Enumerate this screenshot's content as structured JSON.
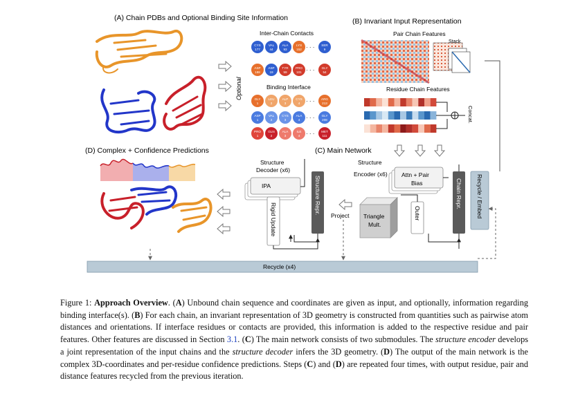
{
  "panels": {
    "a_title": "(A) Chain PDBs and Optional Binding Site Information",
    "b_title": "(B) Invariant Input Representation",
    "c_title": "(C) Main Network",
    "d_title": "(D) Complex + Confidence Predictions"
  },
  "panel_a": {
    "contacts_title": "Inter-Chain Contacts",
    "interface_title": "Binding Interface",
    "optional_label": "Optional",
    "contacts_row1": [
      {
        "name": "CYS",
        "num": "177"
      },
      {
        "name": "VAL",
        "num": "44"
      },
      {
        "name": "ALA",
        "num": "93"
      },
      {
        "name": "LYS",
        "num": "152"
      },
      {
        "name": "SER",
        "num": "9"
      }
    ],
    "contacts_row2": [
      {
        "name": "ASP",
        "num": "188"
      },
      {
        "name": "ASP",
        "num": "19"
      },
      {
        "name": "TYR",
        "num": "59"
      },
      {
        "name": "PRO",
        "num": "101"
      },
      {
        "name": "GLY",
        "num": "54"
      }
    ],
    "interface_row1": [
      {
        "name": "GLY",
        "num": "1"
      },
      {
        "name": "LEU",
        "num": "2"
      },
      {
        "name": "ALP",
        "num": "3"
      },
      {
        "name": "CYS",
        "num": "4"
      },
      {
        "name": "ARG",
        "num": "213"
      }
    ],
    "interface_row2": [
      {
        "name": "ASP",
        "num": "1"
      },
      {
        "name": "VAL",
        "num": "2"
      },
      {
        "name": "CYS",
        "num": "3"
      },
      {
        "name": "ALA",
        "num": "4"
      },
      {
        "name": "GLY",
        "num": "208"
      }
    ],
    "interface_row3": [
      {
        "name": "PRO",
        "num": "1"
      },
      {
        "name": "GLN",
        "num": "2"
      },
      {
        "name": "ALA",
        "num": "3"
      },
      {
        "name": "ILE",
        "num": "4"
      },
      {
        "name": "MET",
        "num": "111"
      }
    ],
    "ellipsis": "· · ·"
  },
  "panel_b": {
    "pair_features": "Pair Chain Features",
    "stack": "Stack",
    "residue_features": "Residue Chain Features",
    "concat": "Concat."
  },
  "panel_c": {
    "structure_decoder": "Structure",
    "decoder_x6": "Decoder (x6)",
    "structure_encoder": "Structure",
    "encoder_x6": "Encoder (x6)",
    "ipa": "IPA",
    "structure_repr": "Structure Repr.",
    "rigid_update": "Rigid Update",
    "project": "Project",
    "attn_pair": "Attn + Pair",
    "bias": "Bias",
    "outer": "Outer",
    "triangle": "Triangle",
    "mult": "Mult.",
    "chain_repr": "Chain Repr.",
    "recycle_embed": "Recycle / Embed",
    "recycle_bar": "Recycle (x4)"
  },
  "caption": {
    "figure_label": "Figure 1:",
    "bold_title": "Approach Overview",
    "s1": ". (",
    "A": "A",
    "s2": ") Unbound chain sequence and coordinates are given as input, and optionally, information regarding binding interface(s). (",
    "B": "B",
    "s3": ") For each chain, an invariant representation of 3D geometry is constructed from quantities such as pairwise atom distances and orientations. If interface residues or contacts are provided, this information is added to the respective residue and pair features. Other features are discussed in Section ",
    "ref": "3.1",
    "s4": ". (",
    "C": "C",
    "s5": ") The main network consists of two submodules. The ",
    "enc": "structure encoder",
    "s6": " develops a joint representation of the input chains and the ",
    "dec": "structure decoder",
    "s7": " infers the 3D geometry. (",
    "D": "D",
    "s8": ") The output of the main network is the complex 3D-coordinates and per-residue confidence predictions. Steps (",
    "C2": "C",
    "s9": ") and (",
    "D2": "D",
    "s10": ") are repeated four times, with output residue, pair and distance features recycled from the previous iteration."
  },
  "colors": {
    "orange": "#e8952a",
    "blue": "#2236c9",
    "red": "#c8202a",
    "box_gray": "#d9d9d9",
    "dark_bar": "#5a5a5a",
    "recycle_blue": "#b9cad6"
  }
}
